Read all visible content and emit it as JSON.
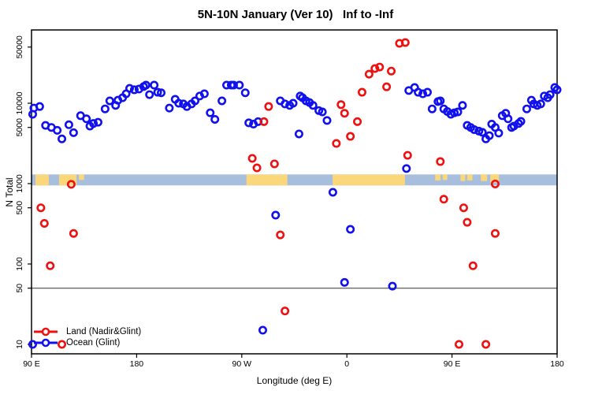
{
  "title": "5N-10N January (Ver 10)   Inf to -Inf",
  "axes": {
    "x": {
      "label": "Longitude (deg E)",
      "min": 90,
      "max": 540,
      "ticks": [
        {
          "v": 90,
          "t": "90 E"
        },
        {
          "v": 180,
          "t": "180"
        },
        {
          "v": 270,
          "t": "90 W"
        },
        {
          "v": 360,
          "t": "0"
        },
        {
          "v": 450,
          "t": "90 E"
        },
        {
          "v": 540,
          "t": "180"
        }
      ]
    },
    "y": {
      "label": "N Total",
      "scale": "log",
      "ticks": [
        {
          "v": 50000,
          "t": "50000"
        },
        {
          "v": 10000,
          "t": "10000"
        },
        {
          "v": 5000,
          "t": "5000"
        },
        {
          "v": 1000,
          "t": "1000"
        },
        {
          "v": 500,
          "t": "500"
        },
        {
          "v": 100,
          "t": "100"
        },
        {
          "v": 50,
          "t": "50"
        },
        {
          "v": 10,
          "t": "10"
        }
      ]
    }
  },
  "legend": [
    {
      "label": "Land (Nadir&Glint)",
      "color": "#ee1111"
    },
    {
      "label": "Ocean (Glint)",
      "color": "#1111ee"
    }
  ],
  "colors": {
    "land_points": "#ee1111",
    "ocean_points": "#1111ee",
    "map_ocean": "#a7bedd",
    "map_land": "#fbd77c",
    "ref_line": "#333333",
    "axis": "#000000"
  },
  "chart_data": {
    "type": "scatter",
    "title": "5N-10N January (Ver 10)   Inf to -Inf",
    "xlabel": "Longitude (deg E)",
    "ylabel": "N Total",
    "x_axis_note": "longitude axis runs 90E eastward across the dateline and Greenwich back to 180; values stored as continuous 90..540 deg E",
    "y_axis_note": "log10 scale, approx 8 to 80000",
    "reference_line_n": 50,
    "map_band": {
      "n_top": 1300,
      "n_bottom": 950,
      "land_patches": [
        [
          93.4,
          104.8,
          1
        ],
        [
          113.6,
          128.5,
          1
        ],
        [
          130.5,
          135,
          0.5
        ],
        [
          274,
          309,
          1
        ],
        [
          347.8,
          409.7,
          1
        ],
        [
          435.6,
          440.2,
          0.55
        ],
        [
          442,
          446,
          0.5
        ],
        [
          457.3,
          461.3,
          0.6
        ],
        [
          463,
          467.5,
          0.55
        ],
        [
          474.7,
          480.1,
          0.6
        ],
        [
          482.8,
          490.2,
          0.75
        ]
      ]
    },
    "series": [
      {
        "name": "Ocean (Glint)",
        "color": "#1111ee",
        "points": [
          [
            91,
            10
          ],
          [
            91,
            7300
          ],
          [
            92,
            8700
          ],
          [
            97,
            9100
          ],
          [
            102,
            5300
          ],
          [
            107,
            5000
          ],
          [
            112,
            4600
          ],
          [
            116,
            3600
          ],
          [
            122,
            5400
          ],
          [
            126,
            4300
          ],
          [
            132,
            7000
          ],
          [
            137,
            6400
          ],
          [
            140,
            5200
          ],
          [
            143,
            5600
          ],
          [
            147,
            5800
          ],
          [
            153,
            8500
          ],
          [
            157,
            10700
          ],
          [
            162,
            9400
          ],
          [
            164,
            10900
          ],
          [
            168,
            11700
          ],
          [
            171,
            13100
          ],
          [
            174,
            15300
          ],
          [
            178,
            14700
          ],
          [
            182,
            15000
          ],
          [
            186,
            16100
          ],
          [
            188,
            16800
          ],
          [
            191,
            12800
          ],
          [
            195,
            16800
          ],
          [
            198,
            13700
          ],
          [
            201,
            13500
          ],
          [
            208,
            8700
          ],
          [
            213,
            11200
          ],
          [
            216,
            10000
          ],
          [
            220,
            9800
          ],
          [
            223,
            9100
          ],
          [
            227,
            9800
          ],
          [
            230,
            10700
          ],
          [
            234,
            12300
          ],
          [
            238,
            13100
          ],
          [
            243,
            7600
          ],
          [
            247,
            6300
          ],
          [
            253,
            10700
          ],
          [
            257,
            16800
          ],
          [
            261,
            16800
          ],
          [
            263,
            16800
          ],
          [
            268,
            16800
          ],
          [
            273,
            13500
          ],
          [
            276,
            5700
          ],
          [
            280,
            5500
          ],
          [
            284,
            5900
          ],
          [
            288,
            15
          ],
          [
            299,
            405
          ],
          [
            303,
            10700
          ],
          [
            307,
            9800
          ],
          [
            311,
            9400
          ],
          [
            314,
            10000
          ],
          [
            319,
            4150
          ],
          [
            320,
            12300
          ],
          [
            322,
            11700
          ],
          [
            325,
            10700
          ],
          [
            328,
            10200
          ],
          [
            331,
            9400
          ],
          [
            336,
            8100
          ],
          [
            339,
            7800
          ],
          [
            343,
            6100
          ],
          [
            348,
            780
          ],
          [
            358,
            59
          ],
          [
            363,
            270
          ],
          [
            399,
            53
          ],
          [
            411,
            1540
          ],
          [
            413,
            14400
          ],
          [
            418,
            15700
          ],
          [
            421,
            13700
          ],
          [
            425,
            13100
          ],
          [
            429,
            13700
          ],
          [
            433,
            8500
          ],
          [
            438,
            10500
          ],
          [
            440,
            10700
          ],
          [
            443,
            8500
          ],
          [
            446,
            7900
          ],
          [
            449,
            7300
          ],
          [
            452,
            7600
          ],
          [
            455,
            7800
          ],
          [
            459,
            9400
          ],
          [
            463,
            5300
          ],
          [
            466,
            5000
          ],
          [
            469,
            4700
          ],
          [
            473,
            4500
          ],
          [
            476,
            4350
          ],
          [
            479,
            3600
          ],
          [
            482,
            3950
          ],
          [
            484,
            5500
          ],
          [
            487,
            5000
          ],
          [
            490,
            4250
          ],
          [
            493,
            7000
          ],
          [
            496,
            7500
          ],
          [
            498,
            6400
          ],
          [
            501,
            5000
          ],
          [
            503,
            5200
          ],
          [
            507,
            5600
          ],
          [
            509,
            5950
          ],
          [
            514,
            8500
          ],
          [
            518,
            10900
          ],
          [
            520,
            9800
          ],
          [
            523,
            9400
          ],
          [
            526,
            9800
          ],
          [
            529,
            12300
          ],
          [
            532,
            11700
          ],
          [
            534,
            12800
          ],
          [
            538,
            15700
          ],
          [
            540,
            14700
          ]
        ]
      },
      {
        "name": "Land (Nadir&Glint)",
        "color": "#ee1111",
        "points": [
          [
            98,
            500
          ],
          [
            101,
            320
          ],
          [
            106,
            95
          ],
          [
            116,
            10
          ],
          [
            124,
            980
          ],
          [
            126,
            240
          ],
          [
            279,
            2060
          ],
          [
            283,
            1570
          ],
          [
            289,
            5900
          ],
          [
            293,
            9100
          ],
          [
            298,
            1760
          ],
          [
            303,
            230
          ],
          [
            307,
            26
          ],
          [
            351,
            3160
          ],
          [
            355,
            9600
          ],
          [
            358,
            7500
          ],
          [
            363,
            3870
          ],
          [
            369,
            5900
          ],
          [
            373,
            13700
          ],
          [
            379,
            23000
          ],
          [
            384,
            27000
          ],
          [
            388,
            28200
          ],
          [
            394,
            16000
          ],
          [
            398,
            25100
          ],
          [
            405,
            55600
          ],
          [
            410,
            56900
          ],
          [
            412,
            2250
          ],
          [
            440,
            1880
          ],
          [
            443,
            640
          ],
          [
            456,
            10
          ],
          [
            460,
            500
          ],
          [
            463,
            330
          ],
          [
            468,
            95
          ],
          [
            479,
            10
          ],
          [
            487,
            990
          ],
          [
            487,
            240
          ]
        ]
      }
    ]
  }
}
